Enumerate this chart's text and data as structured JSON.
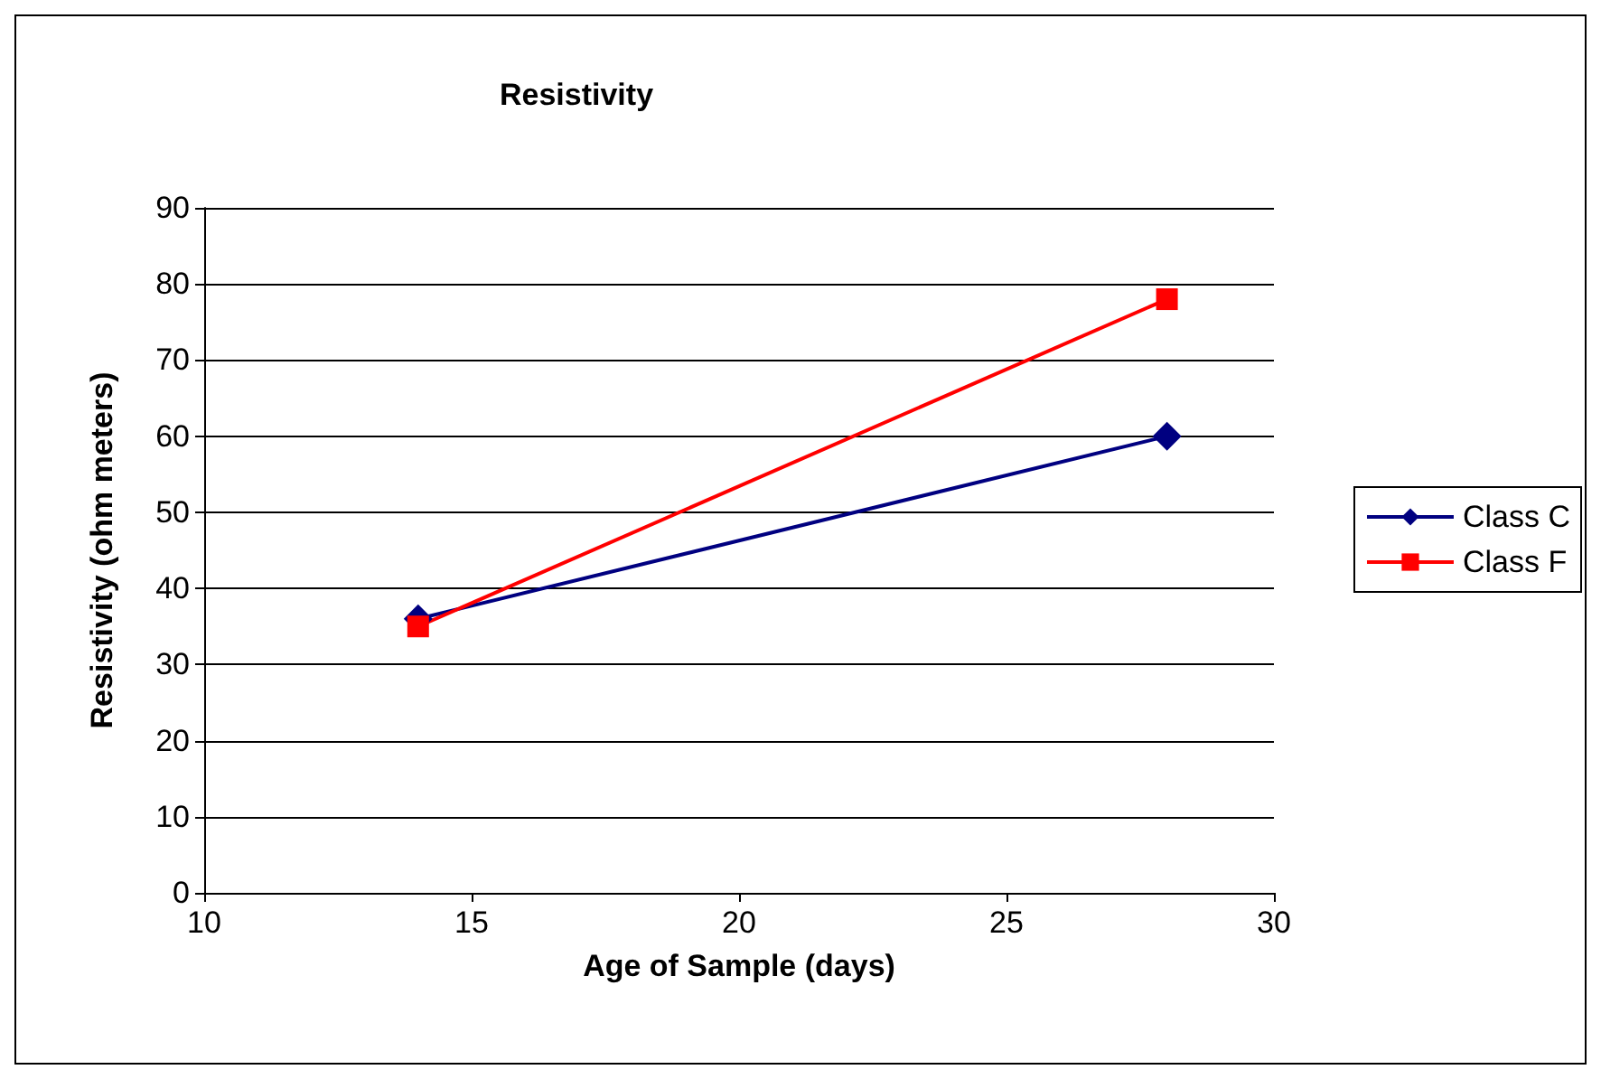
{
  "chart_data": {
    "type": "line",
    "title": "Resistivity",
    "xlabel": "Age of Sample (days)",
    "ylabel": "Resistivity (ohm meters)",
    "x": [
      14,
      28
    ],
    "series": [
      {
        "name": "Class C",
        "color": "#000080",
        "values": [
          36,
          60
        ],
        "marker": "diamond"
      },
      {
        "name": "Class F",
        "color": "#ff0000",
        "values": [
          35,
          78
        ],
        "marker": "square"
      }
    ],
    "xlim": [
      10,
      30
    ],
    "xticks": [
      10,
      15,
      20,
      25,
      30
    ],
    "ylim": [
      0,
      90
    ],
    "yticks": [
      0,
      10,
      20,
      30,
      40,
      50,
      60,
      70,
      80,
      90
    ],
    "grid": "y",
    "legend": "right"
  }
}
